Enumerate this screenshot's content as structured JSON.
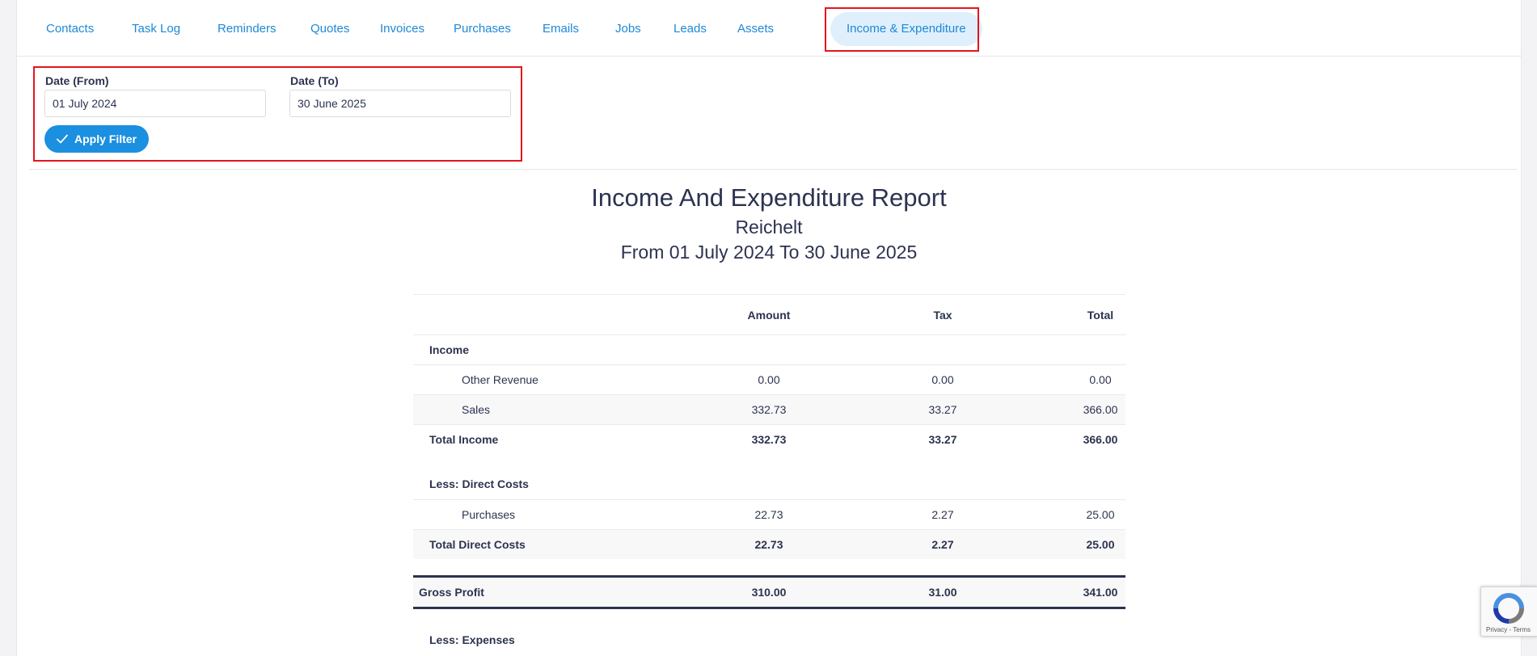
{
  "tabs": [
    {
      "label": "Contacts",
      "active": false
    },
    {
      "label": "Task Log",
      "active": false
    },
    {
      "label": "Reminders",
      "active": false
    },
    {
      "label": "Quotes",
      "active": false
    },
    {
      "label": "Invoices",
      "active": false
    },
    {
      "label": "Purchases",
      "active": false
    },
    {
      "label": "Emails",
      "active": false
    },
    {
      "label": "Jobs",
      "active": false
    },
    {
      "label": "Leads",
      "active": false
    },
    {
      "label": "Assets",
      "active": false
    },
    {
      "label": "Income & Expenditure",
      "active": true
    }
  ],
  "filter": {
    "date_from_label": "Date (From)",
    "date_from_value": "01 July 2024",
    "date_to_label": "Date (To)",
    "date_to_value": "30 June 2025",
    "apply_label": "Apply Filter"
  },
  "report": {
    "title": "Income And Expenditure Report",
    "company": "Reichelt",
    "period": "From 01 July 2024 To 30 June 2025",
    "columns": {
      "amount": "Amount",
      "tax": "Tax",
      "total": "Total"
    },
    "income": {
      "heading": "Income",
      "rows": [
        {
          "label": "Other Revenue",
          "amount": "0.00",
          "tax": "0.00",
          "total": "0.00"
        },
        {
          "label": "Sales",
          "amount": "332.73",
          "tax": "33.27",
          "total": "366.00"
        }
      ],
      "total": {
        "label": "Total Income",
        "amount": "332.73",
        "tax": "33.27",
        "total": "366.00"
      }
    },
    "direct_costs": {
      "heading": "Less: Direct Costs",
      "rows": [
        {
          "label": "Purchases",
          "amount": "22.73",
          "tax": "2.27",
          "total": "25.00"
        }
      ],
      "total": {
        "label": "Total Direct Costs",
        "amount": "22.73",
        "tax": "2.27",
        "total": "25.00"
      }
    },
    "gross_profit": {
      "label": "Gross Profit",
      "amount": "310.00",
      "tax": "31.00",
      "total": "341.00"
    },
    "expenses": {
      "heading": "Less: Expenses"
    }
  },
  "recaptcha": {
    "terms": "Privacy - Terms",
    "icon": "recaptcha-icon"
  },
  "colors": {
    "accent": "#1b8fe0",
    "active_tab_bg": "#dff0fc",
    "highlight": "#e3151c",
    "text": "#2c3350"
  }
}
